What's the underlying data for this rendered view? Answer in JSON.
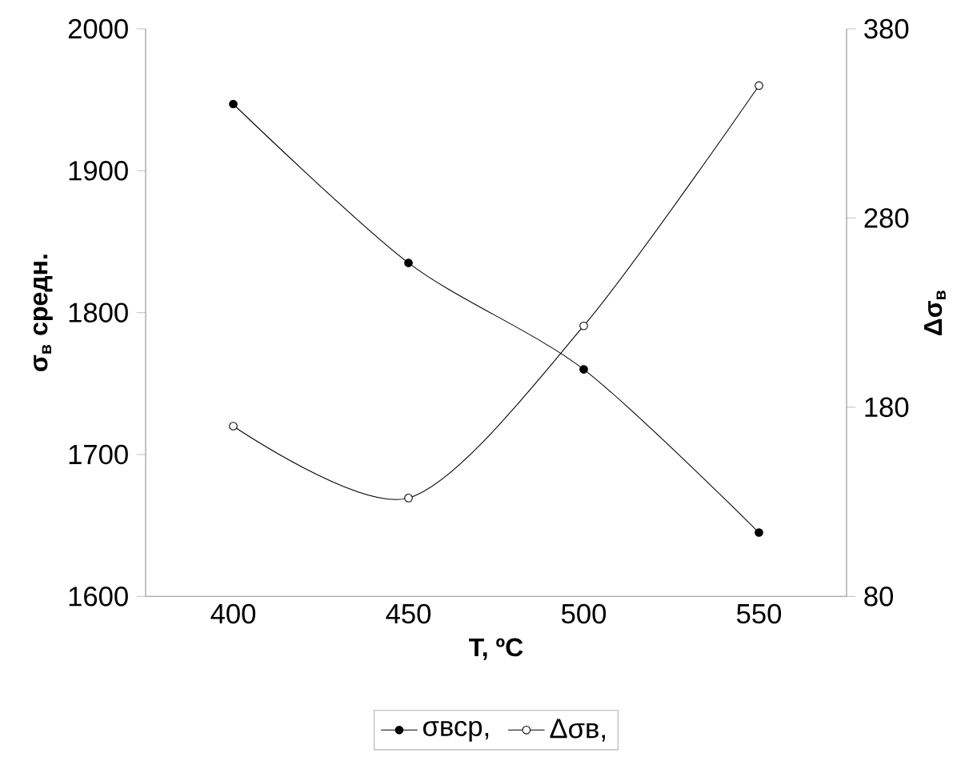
{
  "chart_data": {
    "type": "line",
    "xlabel": "T, ºC",
    "ylabel": "σ$_{в}$ средн.",
    "y2label": "Δσ$_{в}$",
    "x": [
      400,
      450,
      500,
      550
    ],
    "series": [
      {
        "name": "σвср,",
        "color": "#000000",
        "values": [
          1947,
          1835,
          1760,
          1645
        ]
      },
      {
        "name": "Δσв,",
        "color": "#000000",
        "values": [
          170,
          132,
          223,
          350
        ],
        "axis": "y2"
      }
    ],
    "xlim": [
      375,
      575
    ],
    "xticks": [
      400,
      450,
      500,
      550
    ],
    "ylim": [
      1600,
      2000
    ],
    "yticks": [
      1600,
      1700,
      1800,
      1900,
      2000
    ],
    "y2lim": [
      80,
      380
    ],
    "y2ticks": [
      80,
      180,
      280,
      380
    ],
    "marker": "circle",
    "legend": "bottom",
    "grid": false
  }
}
